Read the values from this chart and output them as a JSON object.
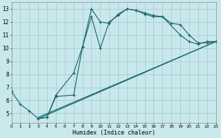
{
  "xlabel": "Humidex (Indice chaleur)",
  "bg_color": "#c8e8ec",
  "grid_color": "#a8ccd0",
  "line_color": "#1a6868",
  "xlim": [
    0,
    23
  ],
  "ylim": [
    4.3,
    13.5
  ],
  "xticks": [
    0,
    1,
    2,
    3,
    4,
    5,
    6,
    7,
    8,
    9,
    10,
    11,
    12,
    13,
    14,
    15,
    16,
    17,
    18,
    19,
    20,
    21,
    22,
    23
  ],
  "yticks": [
    5,
    6,
    7,
    8,
    9,
    10,
    11,
    12,
    13
  ],
  "curve1_x": [
    0,
    1,
    2,
    3,
    4,
    5,
    7,
    8,
    9,
    10,
    11,
    12,
    13,
    14,
    15,
    16,
    17,
    19,
    20,
    21,
    22,
    23
  ],
  "curve1_y": [
    6.7,
    5.7,
    5.2,
    4.6,
    4.7,
    6.4,
    8.1,
    10.1,
    13.0,
    12.0,
    11.9,
    12.6,
    13.0,
    12.9,
    12.6,
    12.4,
    12.4,
    11.0,
    10.5,
    10.3,
    10.5,
    10.5
  ],
  "curve2_x": [
    3,
    4,
    5,
    7,
    8,
    9,
    10,
    11,
    12,
    13,
    14,
    15,
    16,
    17,
    18,
    19,
    20,
    21,
    22,
    23
  ],
  "curve2_y": [
    4.6,
    4.7,
    6.3,
    6.4,
    10.1,
    12.4,
    10.0,
    12.0,
    12.5,
    13.0,
    12.9,
    12.7,
    12.5,
    12.4,
    11.9,
    11.8,
    11.0,
    10.4,
    10.4,
    10.5
  ],
  "line1_x": [
    3,
    23
  ],
  "line1_y": [
    4.7,
    10.5
  ],
  "line2_x": [
    3,
    23
  ],
  "line2_y": [
    4.6,
    10.5
  ]
}
